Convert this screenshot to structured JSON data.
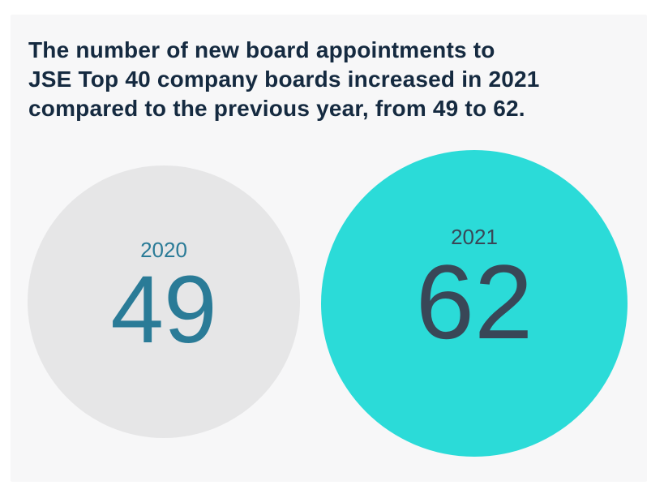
{
  "headline": {
    "lines": [
      "The number of new board appointments to",
      "JSE Top 40 company boards increased in 2021",
      "compared to the previous year, from 49 to 62."
    ]
  },
  "chart_data": {
    "type": "bubble",
    "title": "The number of new board appointments to JSE Top 40 company boards increased in 2021 compared to the previous year, from 49 to 62.",
    "categories": [
      "2020",
      "2021"
    ],
    "values": [
      49,
      62
    ],
    "series": [
      {
        "label": "2020",
        "value": 49,
        "bubble_color": "#e6e6e7",
        "text_color": "#2a7b97"
      },
      {
        "label": "2021",
        "value": 62,
        "bubble_color": "#2bdbd8",
        "text_color": "#394757"
      }
    ],
    "area_proportional_to_value": true,
    "legend_position": "none",
    "grid": false
  },
  "colors": {
    "page_background": "#ffffff",
    "card_background": "#f7f7f8",
    "headline_text": "#152a40"
  }
}
